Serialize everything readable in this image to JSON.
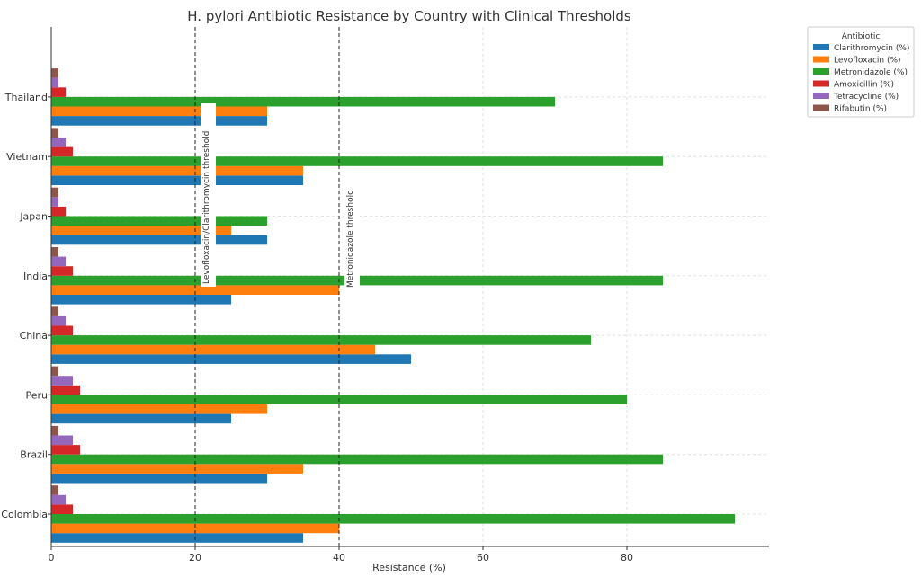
{
  "chart_data": {
    "type": "bar",
    "orientation": "horizontal",
    "title": "H. pylori Antibiotic Resistance by Country with Clinical Thresholds",
    "xlabel": "Resistance (%)",
    "ylabel": "",
    "xlim": [
      0,
      100
    ],
    "xticks": [
      0,
      20,
      40,
      60,
      80
    ],
    "grid": true,
    "legend_title": "Antibiotic",
    "legend_position": "right-outside-top",
    "categories": [
      "Colombia",
      "Brazil",
      "Peru",
      "China",
      "India",
      "Japan",
      "Vietnam",
      "Thailand"
    ],
    "series": [
      {
        "name": "Clarithromycin (%)",
        "color": "#1f77b4",
        "values": [
          35,
          30,
          25,
          50,
          25,
          30,
          35,
          30
        ]
      },
      {
        "name": "Levofloxacin (%)",
        "color": "#ff7f0e",
        "values": [
          40,
          35,
          30,
          45,
          40,
          25,
          35,
          30
        ]
      },
      {
        "name": "Metronidazole (%)",
        "color": "#2ca02c",
        "values": [
          95,
          85,
          80,
          75,
          85,
          30,
          85,
          70
        ]
      },
      {
        "name": "Amoxicillin (%)",
        "color": "#d62728",
        "values": [
          3,
          4,
          4,
          3,
          3,
          2,
          3,
          2
        ]
      },
      {
        "name": "Tetracycline (%)",
        "color": "#9467bd",
        "values": [
          2,
          3,
          3,
          2,
          2,
          1,
          2,
          1
        ]
      },
      {
        "name": "Rifabutin (%)",
        "color": "#8c564b",
        "values": [
          1,
          1,
          1,
          1,
          1,
          1,
          1,
          1
        ]
      }
    ],
    "thresholds": [
      {
        "value": 20,
        "label": "Levofloxacin/Clarithromycin threshold"
      },
      {
        "value": 40,
        "label": "Metronidazole threshold"
      }
    ]
  }
}
